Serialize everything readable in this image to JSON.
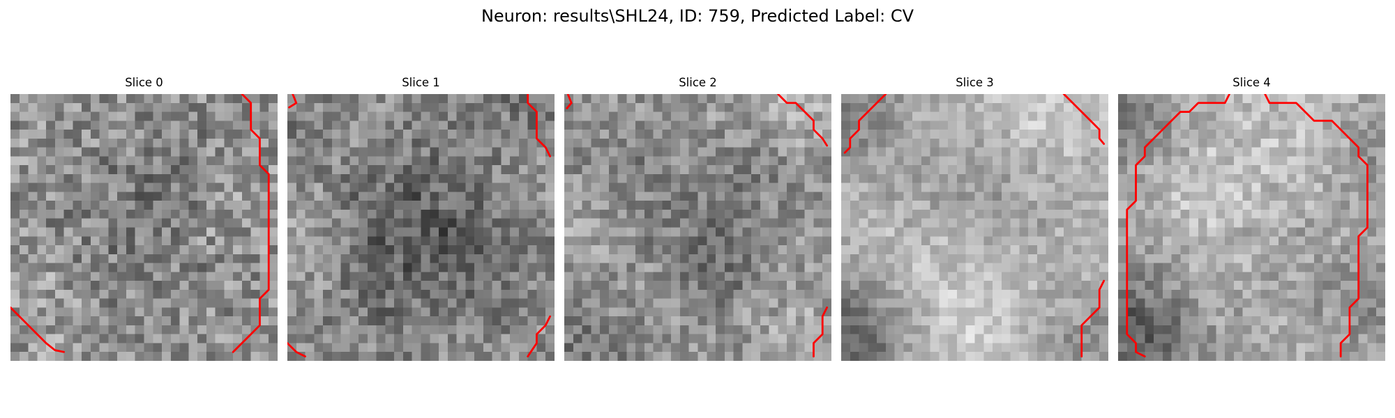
{
  "figure": {
    "title": "Neuron: results\\SHL24, ID: 759, Predicted Label: CV"
  },
  "panels": [
    {
      "title": "Slice 0",
      "grid_size": 30,
      "image_profile": {
        "base_gray": 148,
        "texture_amplitude": 48,
        "dark_regions": [
          [
            16,
            14,
            7,
            18
          ],
          [
            10,
            18,
            5,
            12
          ],
          [
            20,
            8,
            5,
            10
          ]
        ],
        "bright_regions": [
          [
            24,
            13,
            3,
            18
          ],
          [
            6,
            24,
            4,
            16
          ]
        ]
      },
      "contour": {
        "color": "#ff0000",
        "segments": [
          [
            [
              26.0,
              0.0
            ],
            [
              27.0,
              1.0
            ],
            [
              27.0,
              4.0
            ],
            [
              28.0,
              5.0
            ],
            [
              28.0,
              8.0
            ],
            [
              29.0,
              9.0
            ],
            [
              29.0,
              22.0
            ],
            [
              28.0,
              23.0
            ],
            [
              28.0,
              26.0
            ],
            [
              27.0,
              27.0
            ],
            [
              26.0,
              28.0
            ],
            [
              25.0,
              29.0
            ]
          ],
          [
            [
              0.0,
              24.0
            ],
            [
              1.0,
              25.0
            ],
            [
              2.0,
              26.0
            ],
            [
              3.0,
              27.0
            ],
            [
              4.0,
              28.0
            ],
            [
              5.0,
              28.8
            ],
            [
              6.0,
              29.0
            ]
          ]
        ]
      }
    },
    {
      "title": "Slice 1",
      "grid_size": 30,
      "image_profile": {
        "base_gray": 145,
        "texture_amplitude": 42,
        "dark_regions": [
          [
            15,
            12,
            9,
            28
          ],
          [
            10,
            18,
            7,
            20
          ],
          [
            20,
            17,
            6,
            20
          ],
          [
            27,
            2,
            4,
            28
          ],
          [
            2,
            2,
            4,
            24
          ]
        ],
        "bright_regions": [
          [
            3,
            17,
            4,
            30
          ],
          [
            7,
            3,
            5,
            22
          ],
          [
            27,
            8,
            4,
            24
          ]
        ]
      },
      "contour": {
        "color": "#ff0000",
        "segments": [
          [
            [
              0.6,
              0.0
            ],
            [
              1.0,
              1.0
            ],
            [
              0.2,
              1.5
            ]
          ],
          [
            [
              27.0,
              0.0
            ],
            [
              27.0,
              1.0
            ],
            [
              28.0,
              2.0
            ],
            [
              28.0,
              5.0
            ],
            [
              29.0,
              6.0
            ],
            [
              29.5,
              7.0
            ]
          ],
          [
            [
              0.0,
              28.0
            ],
            [
              1.0,
              29.0
            ],
            [
              2.0,
              29.5
            ]
          ],
          [
            [
              29.5,
              25.0
            ],
            [
              29.0,
              26.0
            ],
            [
              28.0,
              27.0
            ],
            [
              28.0,
              28.0
            ],
            [
              27.0,
              29.5
            ]
          ]
        ]
      }
    },
    {
      "title": "Slice 2",
      "grid_size": 30,
      "image_profile": {
        "base_gray": 150,
        "texture_amplitude": 38,
        "dark_regions": [
          [
            17,
            19,
            4,
            42
          ],
          [
            8,
            10,
            5,
            26
          ],
          [
            22,
            8,
            4,
            26
          ],
          [
            2,
            28,
            4,
            30
          ]
        ],
        "bright_regions": [
          [
            25,
            2,
            4,
            36
          ],
          [
            2,
            15,
            4,
            20
          ],
          [
            25,
            25,
            4,
            18
          ]
        ]
      },
      "contour": {
        "color": "#ff0000",
        "segments": [
          [
            [
              0.4,
              0.0
            ],
            [
              0.8,
              1.0
            ],
            [
              0.3,
              1.6
            ]
          ],
          [
            [
              24.0,
              0.0
            ],
            [
              25.0,
              1.0
            ],
            [
              26.0,
              1.0
            ],
            [
              27.0,
              2.0
            ],
            [
              28.0,
              3.0
            ],
            [
              28.0,
              4.0
            ],
            [
              29.0,
              5.0
            ],
            [
              29.5,
              5.8
            ]
          ],
          [
            [
              29.5,
              24.0
            ],
            [
              29.0,
              25.0
            ],
            [
              29.0,
              27.0
            ],
            [
              28.0,
              28.0
            ],
            [
              28.0,
              29.5
            ]
          ]
        ]
      }
    },
    {
      "title": "Slice 3",
      "grid_size": 30,
      "image_profile": {
        "base_gray": 182,
        "texture_amplitude": 28,
        "dark_regions": [
          [
            1,
            27,
            5,
            90
          ],
          [
            0,
            2,
            5,
            55
          ],
          [
            18,
            12,
            7,
            22
          ],
          [
            11,
            10,
            5,
            18
          ],
          [
            27,
            28,
            4,
            38
          ]
        ],
        "bright_regions": [
          [
            11,
            20,
            7,
            24
          ],
          [
            22,
            3,
            4,
            26
          ],
          [
            16,
            26,
            4,
            18
          ]
        ]
      },
      "contour": {
        "color": "#ff0000",
        "segments": [
          [
            [
              0.4,
              6.6
            ],
            [
              1.0,
              6.0
            ],
            [
              1.0,
              5.0
            ],
            [
              2.0,
              4.0
            ],
            [
              2.0,
              3.0
            ],
            [
              3.0,
              2.0
            ],
            [
              4.0,
              1.0
            ],
            [
              5.0,
              0.0
            ]
          ],
          [
            [
              25.0,
              0.0
            ],
            [
              26.0,
              1.0
            ],
            [
              27.0,
              2.0
            ],
            [
              28.0,
              3.0
            ],
            [
              29.0,
              4.0
            ],
            [
              29.0,
              5.0
            ],
            [
              29.5,
              5.6
            ]
          ],
          [
            [
              29.5,
              21.0
            ],
            [
              29.0,
              22.0
            ],
            [
              29.0,
              24.0
            ],
            [
              28.0,
              25.0
            ],
            [
              27.0,
              26.0
            ],
            [
              27.0,
              29.5
            ]
          ]
        ]
      }
    },
    {
      "title": "Slice 4",
      "grid_size": 30,
      "image_profile": {
        "base_gray": 176,
        "texture_amplitude": 32,
        "dark_regions": [
          [
            0,
            2,
            5,
            65
          ],
          [
            1,
            27,
            6,
            85
          ],
          [
            28,
            6,
            4,
            40
          ],
          [
            29,
            24,
            4,
            36
          ],
          [
            20,
            18,
            6,
            24
          ]
        ],
        "bright_regions": [
          [
            13,
            12,
            8,
            24
          ],
          [
            24,
            5,
            4,
            22
          ]
        ]
      },
      "contour": {
        "color": "#ff0000",
        "segments": [
          [
            [
              12.5,
              0.0
            ],
            [
              12.0,
              1.0
            ],
            [
              9.0,
              1.0
            ],
            [
              8.0,
              2.0
            ],
            [
              7.0,
              2.0
            ],
            [
              6.0,
              3.0
            ],
            [
              5.0,
              4.0
            ],
            [
              4.0,
              5.0
            ],
            [
              3.0,
              6.0
            ],
            [
              3.0,
              7.0
            ],
            [
              2.0,
              8.0
            ],
            [
              2.0,
              12.0
            ],
            [
              1.0,
              13.0
            ],
            [
              1.0,
              27.0
            ],
            [
              2.0,
              28.0
            ],
            [
              2.0,
              29.0
            ],
            [
              3.0,
              29.5
            ]
          ],
          [
            [
              16.5,
              0.0
            ],
            [
              17.0,
              1.0
            ],
            [
              20.0,
              1.0
            ],
            [
              21.0,
              2.0
            ],
            [
              22.0,
              3.0
            ],
            [
              24.0,
              3.0
            ],
            [
              25.0,
              4.0
            ],
            [
              26.0,
              5.0
            ],
            [
              27.0,
              6.0
            ],
            [
              27.0,
              7.0
            ],
            [
              28.0,
              8.0
            ],
            [
              28.0,
              15.0
            ],
            [
              27.0,
              16.0
            ],
            [
              27.0,
              23.0
            ],
            [
              26.0,
              24.0
            ],
            [
              26.0,
              27.0
            ],
            [
              25.0,
              28.0
            ],
            [
              25.0,
              29.5
            ]
          ]
        ]
      }
    }
  ]
}
